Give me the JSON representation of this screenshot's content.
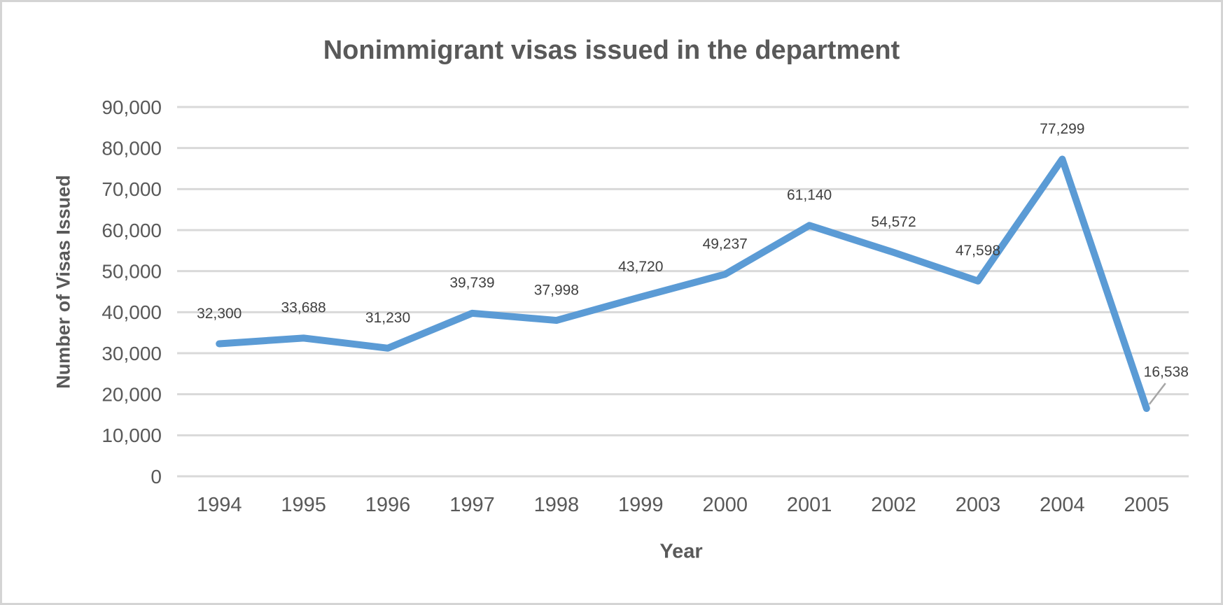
{
  "chart_data": {
    "type": "line",
    "title": "Nonimmigrant visas issued in the department",
    "xlabel": "Year",
    "ylabel": "Number of Visas Issued",
    "categories": [
      "1994",
      "1995",
      "1996",
      "1997",
      "1998",
      "1999",
      "2000",
      "2001",
      "2002",
      "2003",
      "2004",
      "2005"
    ],
    "values": [
      32300,
      33688,
      31230,
      39739,
      37998,
      43720,
      49237,
      61140,
      54572,
      47598,
      77299,
      16538
    ],
    "data_labels": [
      "32,300",
      "33,688",
      "31,230",
      "39,739",
      "37,998",
      "43,720",
      "49,237",
      "61,140",
      "54,572",
      "47,598",
      "77,299",
      "16,538"
    ],
    "ylim": [
      0,
      90000
    ],
    "ytick_step": 10000,
    "ytick_labels": [
      "0",
      "10,000",
      "20,000",
      "30,000",
      "40,000",
      "50,000",
      "60,000",
      "70,000",
      "80,000",
      "90,000"
    ],
    "grid": "horizontal",
    "legend": "none",
    "colors": {
      "line": "#5B9BD5",
      "gridline": "#D9D9D9",
      "axis_text": "#595959",
      "data_label_text": "#404040",
      "title_text": "#595959",
      "leader_line": "#A6A6A6"
    }
  }
}
